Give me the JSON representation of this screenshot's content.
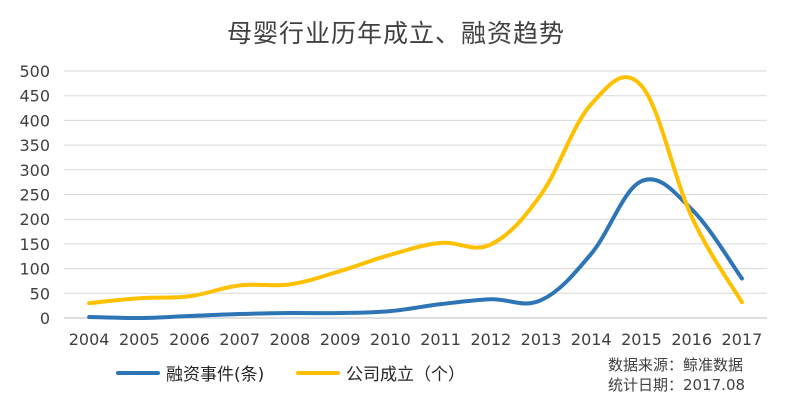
{
  "chart_data": {
    "type": "line",
    "title": "母婴行业历年成立、融资趋势",
    "xlabel": "",
    "ylabel": "",
    "x": [
      "2004",
      "2005",
      "2006",
      "2007",
      "2008",
      "2009",
      "2010",
      "2011",
      "2012",
      "2013",
      "2014",
      "2015",
      "2016",
      "2017"
    ],
    "ylim": [
      0,
      500
    ],
    "yticks": [
      "0",
      "50",
      "100",
      "150",
      "200",
      "250",
      "300",
      "350",
      "400",
      "450",
      "500"
    ],
    "grid": true,
    "legend_position": "bottom-left",
    "series": [
      {
        "name": "融资事件(条)",
        "color": "#2E75B6",
        "values": [
          2,
          0,
          4,
          8,
          10,
          10,
          14,
          28,
          38,
          36,
          130,
          277,
          220,
          80
        ]
      },
      {
        "name": "公司成立（个）",
        "color": "#FFC000",
        "values": [
          30,
          40,
          44,
          66,
          68,
          95,
          128,
          152,
          149,
          250,
          433,
          470,
          205,
          32
        ]
      }
    ]
  },
  "source": {
    "line1": "数据来源：鲸准数据",
    "line2": "统计日期：2017.08"
  }
}
